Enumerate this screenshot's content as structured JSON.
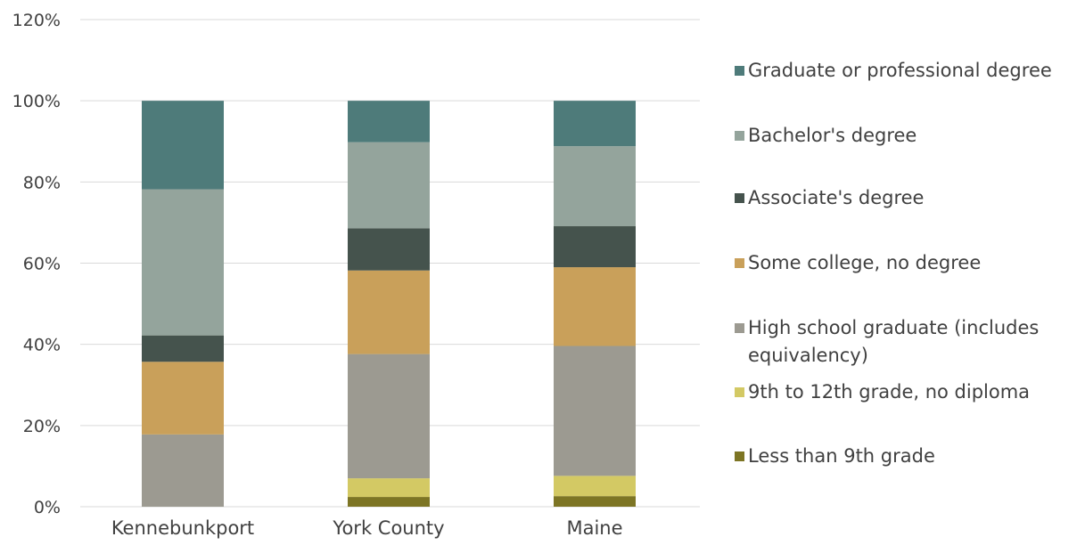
{
  "chart_data": {
    "type": "bar",
    "stacked": true,
    "categories": [
      "Kennebunkport",
      "York County",
      "Maine"
    ],
    "ylim": [
      0,
      120
    ],
    "yticks": [
      "0%",
      "20%",
      "40%",
      "60%",
      "80%",
      "100%",
      "120%"
    ],
    "grid": true,
    "legend_position": "right",
    "series": [
      {
        "name": "Less than 9th grade",
        "color": "#7d7524",
        "values": [
          0,
          2.4,
          2.6
        ]
      },
      {
        "name": "9th to 12th grade, no diploma",
        "color": "#d3c964",
        "values": [
          0,
          4.6,
          5.0
        ]
      },
      {
        "name": "High school graduate (includes equivalency)",
        "color": "#9c9a91",
        "values": [
          17.8,
          30.6,
          32.0
        ]
      },
      {
        "name": "Some college, no degree",
        "color": "#c9a05a",
        "values": [
          17.9,
          20.6,
          19.4
        ]
      },
      {
        "name": "Associate's degree",
        "color": "#45534d",
        "values": [
          6.5,
          10.4,
          10.1
        ]
      },
      {
        "name": "Bachelor's degree",
        "color": "#94a49c",
        "values": [
          36.0,
          21.2,
          19.7
        ]
      },
      {
        "name": "Graduate or professional degree",
        "color": "#4e7b7a",
        "values": [
          21.8,
          10.2,
          11.2
        ]
      }
    ]
  }
}
